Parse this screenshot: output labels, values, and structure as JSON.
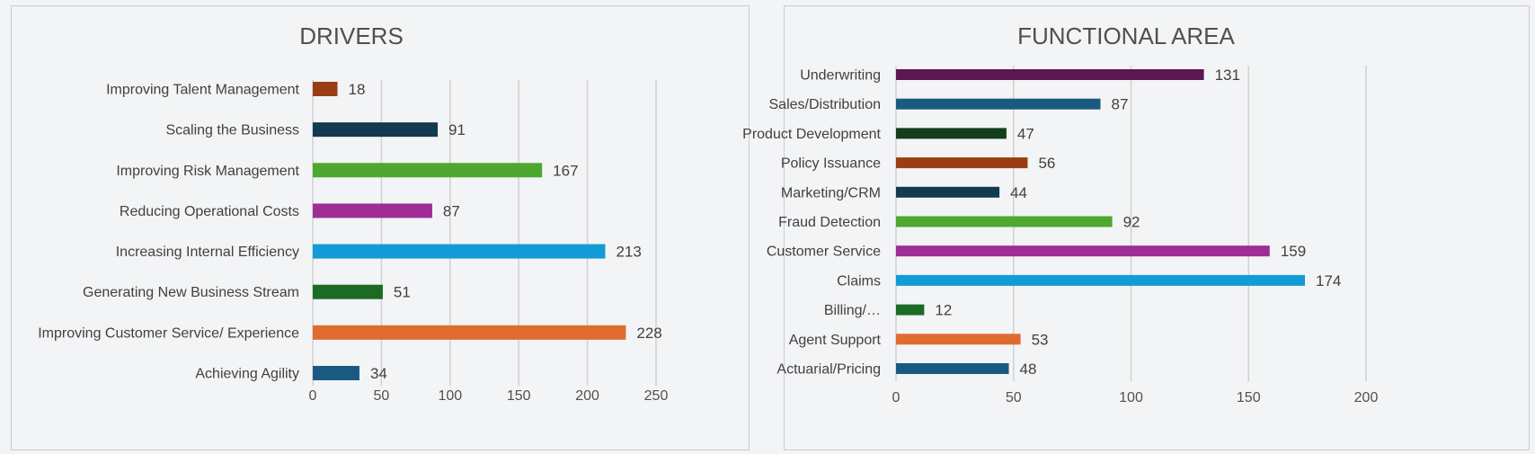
{
  "chart_data": [
    {
      "type": "bar",
      "orientation": "horizontal",
      "title": "DRIVERS",
      "categories": [
        "Improving Talent Management",
        "Scaling the Business",
        "Improving Risk Management",
        "Reducing Operational Costs",
        "Increasing Internal Efficiency",
        "Generating New Business Stream",
        "Improving Customer Service/ Experience",
        "Achieving Agility"
      ],
      "values": [
        18,
        91,
        167,
        87,
        213,
        51,
        228,
        34
      ],
      "colors": [
        "#9b3d12",
        "#123a50",
        "#4ea72e",
        "#9e2d96",
        "#129bd6",
        "#1b6b25",
        "#e06b2e",
        "#1b5a80"
      ],
      "ticks": [
        "0",
        "50",
        "100",
        "150",
        "200",
        "250"
      ],
      "xlim": [
        0,
        250
      ],
      "grid": true,
      "xlabel": "",
      "ylabel": ""
    },
    {
      "type": "bar",
      "orientation": "horizontal",
      "title": "FUNCTIONAL AREA",
      "categories": [
        "Underwriting",
        "Sales/Distribution",
        "Product Development",
        "Policy Issuance",
        "Marketing/CRM",
        "Fraud Detection",
        "Customer Service",
        "Claims",
        "Billing/…",
        "Agent Support",
        "Actuarial/Pricing"
      ],
      "values": [
        131,
        87,
        47,
        56,
        44,
        92,
        159,
        174,
        12,
        53,
        48
      ],
      "colors": [
        "#5a1751",
        "#1b5a80",
        "#143d1c",
        "#9b3d12",
        "#123a50",
        "#4ea72e",
        "#9e2d96",
        "#129bd6",
        "#1b6b25",
        "#e06b2e",
        "#1b5a80"
      ],
      "ticks": [
        "0",
        "50",
        "100",
        "150",
        "200"
      ],
      "xlim": [
        0,
        200
      ],
      "grid": true,
      "xlabel": "",
      "ylabel": ""
    }
  ]
}
